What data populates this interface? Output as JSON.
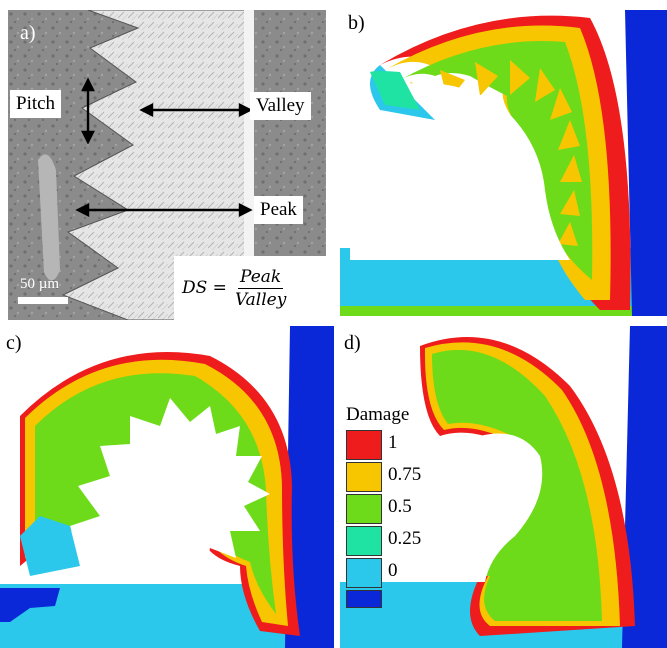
{
  "panels": {
    "a": {
      "label": "a)",
      "pitch_label": "Pitch",
      "valley_label": "Valley",
      "peak_label": "Peak",
      "scale_bar": "50 µm",
      "formula": {
        "lhs": "DS =",
        "numerator": "Peak",
        "denominator": "Valley"
      }
    },
    "b": {
      "label": "b)"
    },
    "c": {
      "label": "c)"
    },
    "d": {
      "label": "d)"
    }
  },
  "legend": {
    "title": "Damage",
    "items": [
      {
        "label": "1",
        "color": "#ee1c1c"
      },
      {
        "label": "0.75",
        "color": "#f7c600"
      },
      {
        "label": "0.5",
        "color": "#6edb1a"
      },
      {
        "label": "0.25",
        "color": "#1fe3a3"
      },
      {
        "label": "0",
        "color": "#2bc8ec"
      },
      {
        "label": "",
        "color": "#0a28d8"
      }
    ]
  },
  "colors": {
    "red": "#ee1c1c",
    "yellow": "#f7c600",
    "green": "#6edb1a",
    "teal": "#1fe3a3",
    "cyan": "#2bc8ec",
    "blue": "#0a28d8",
    "micrograph_bg": "#8a8a8a",
    "chip_white": "#e9e9e9"
  }
}
